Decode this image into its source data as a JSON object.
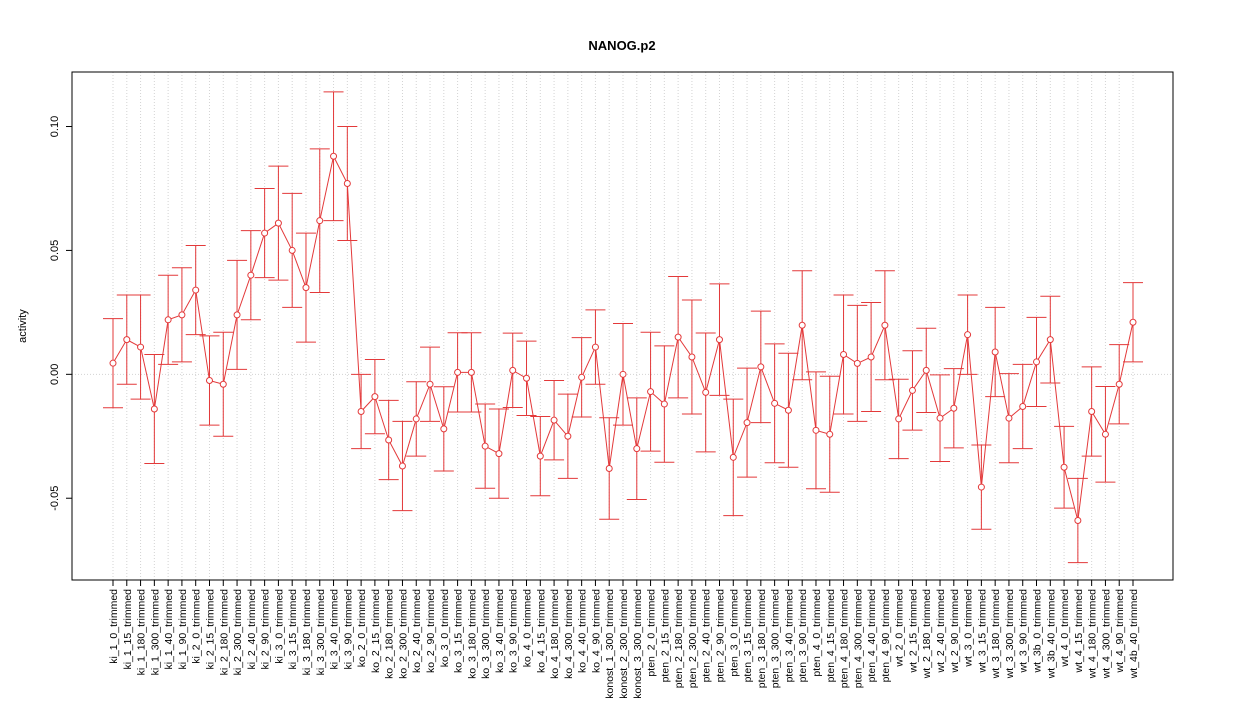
{
  "chart_data": {
    "type": "line",
    "title": "NANOG.p2",
    "y_label": "activity",
    "categories": [
      "ki_1_0_trimmed",
      "ki_1_15_trimmed",
      "ki_1_180_trimmed",
      "ki_1_300_trimmed",
      "ki_1_40_trimmed",
      "ki_1_90_trimmed",
      "ki_2_0_trimmed",
      "ki_2_15_trimmed",
      "ki_2_180_trimmed",
      "ki_2_300_trimmed",
      "ki_2_40_trimmed",
      "ki_2_90_trimmed",
      "ki_3_0_trimmed",
      "ki_3_15_trimmed",
      "ki_3_180_trimmed",
      "ki_3_300_trimmed",
      "ki_3_40_trimmed",
      "ki_3_90_trimmed",
      "ko_2_0_trimmed",
      "ko_2_15_trimmed",
      "ko_2_180_trimmed",
      "ko_2_300_trimmed",
      "ko_2_40_trimmed",
      "ko_2_90_trimmed",
      "ko_3_0_trimmed",
      "ko_3_15_trimmed",
      "ko_3_180_trimmed",
      "ko_3_300_trimmed",
      "ko_3_40_trimmed",
      "ko_3_90_trimmed",
      "ko_4_0_trimmed",
      "ko_4_15_trimmed",
      "ko_4_180_trimmed",
      "ko_4_300_trimmed",
      "ko_4_40_trimmed",
      "ko_4_90_trimmed",
      "konost_1_300_trimmed",
      "konost_2_300_trimmed",
      "konost_3_300_trimmed",
      "pten_2_0_trimmed",
      "pten_2_15_trimmed",
      "pten_2_180_trimmed",
      "pten_2_300_trimmed",
      "pten_2_40_trimmed",
      "pten_2_90_trimmed",
      "pten_3_0_trimmed",
      "pten_3_15_trimmed",
      "pten_3_180_trimmed",
      "pten_3_300_trimmed",
      "pten_3_40_trimmed",
      "pten_3_90_trimmed",
      "pten_4_0_trimmed",
      "pten_4_15_trimmed",
      "pten_4_180_trimmed",
      "pten_4_300_trimmed",
      "pten_4_40_trimmed",
      "pten_4_90_trimmed",
      "wt_2_0_trimmed",
      "wt_2_15_trimmed",
      "wt_2_180_trimmed",
      "wt_2_40_trimmed",
      "wt_2_90_trimmed",
      "wt_3_0_trimmed",
      "wt_3_15_trimmed",
      "wt_3_180_trimmed",
      "wt_3_300_trimmed",
      "wt_3_90_trimmed",
      "wt_3b_0_trimmed",
      "wt_3b_40_trimmed",
      "wt_4_0_trimmed",
      "wt_4_15_trimmed",
      "wt_4_180_trimmed",
      "wt_4_300_trimmed",
      "wt_4_90_trimmed",
      "wt_4b_40_trimmed"
    ],
    "series": [
      {
        "color": "#e3393a",
        "values": [
          0.0045,
          0.014,
          0.011,
          -0.014,
          0.022,
          0.024,
          0.034,
          -0.0025,
          -0.004,
          0.024,
          0.04,
          0.057,
          0.061,
          0.05,
          0.035,
          0.062,
          0.088,
          0.077,
          -0.015,
          -0.009,
          -0.0265,
          -0.037,
          -0.018,
          -0.004,
          -0.022,
          0.0008,
          0.0008,
          -0.029,
          -0.032,
          0.0016,
          -0.0016,
          -0.033,
          -0.0185,
          -0.025,
          -0.0012,
          0.011,
          -0.038,
          0,
          -0.03,
          -0.007,
          -0.012,
          0.015,
          0.007,
          -0.0073,
          0.014,
          -0.0335,
          -0.0195,
          0.003,
          -0.0117,
          -0.0145,
          0.0198,
          -0.0226,
          -0.0242,
          0.008,
          0.0044,
          0.007,
          0.0198,
          -0.018,
          -0.0065,
          0.0016,
          -0.0177,
          -0.0137,
          0.016,
          -0.0455,
          0.009,
          -0.0177,
          -0.013,
          0.005,
          0.014,
          -0.0375,
          -0.059,
          -0.015,
          -0.0242,
          -0.004,
          0.021
        ],
        "errors": [
          0.018,
          0.018,
          0.021,
          0.022,
          0.018,
          0.019,
          0.018,
          0.018,
          0.021,
          0.022,
          0.018,
          0.018,
          0.023,
          0.023,
          0.022,
          0.029,
          0.026,
          0.023,
          0.015,
          0.015,
          0.016,
          0.018,
          0.015,
          0.015,
          0.017,
          0.016,
          0.016,
          0.017,
          0.018,
          0.015,
          0.015,
          0.016,
          0.016,
          0.017,
          0.016,
          0.015,
          0.0205,
          0.0205,
          0.0205,
          0.024,
          0.0235,
          0.0245,
          0.023,
          0.024,
          0.0225,
          0.0235,
          0.022,
          0.0225,
          0.024,
          0.023,
          0.022,
          0.0236,
          0.0234,
          0.024,
          0.0234,
          0.022,
          0.022,
          0.016,
          0.016,
          0.017,
          0.0175,
          0.016,
          0.016,
          0.017,
          0.018,
          0.018,
          0.017,
          0.018,
          0.0175,
          0.0165,
          0.017,
          0.018,
          0.0193,
          0.016,
          0.016
        ]
      }
    ],
    "ylim": [
      -0.083,
      0.122
    ],
    "yticks": [
      -0.05,
      {
        "value": 0,
        "label": "0.00"
      },
      0.05,
      {
        "value": 0.1,
        "label": "0.10"
      }
    ],
    "grid": true
  }
}
